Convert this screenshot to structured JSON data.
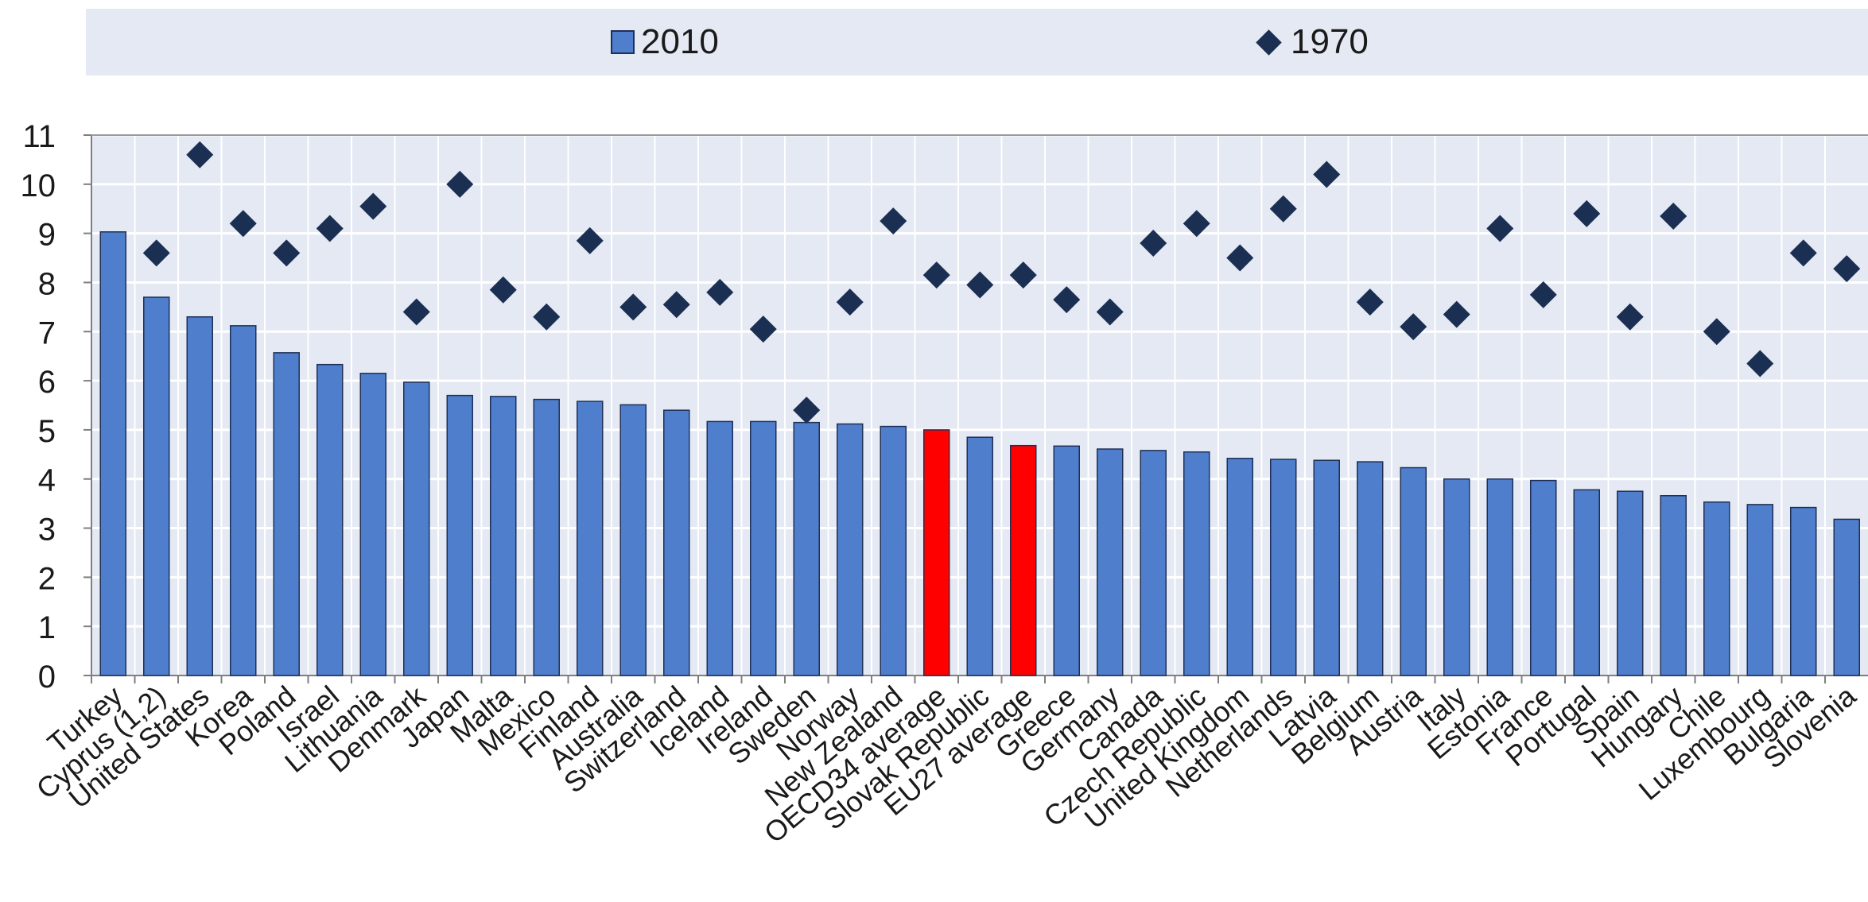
{
  "chart_data": {
    "type": "bar",
    "categories": [
      "Turkey",
      "Cyprus (1,2)",
      "United States",
      "Korea",
      "Poland",
      "Israel",
      "Lithuania",
      "Denmark",
      "Japan",
      "Malta",
      "Mexico",
      "Finland",
      "Australia",
      "Switzerland",
      "Iceland",
      "Ireland",
      "Sweden",
      "Norway",
      "New Zealand",
      "OECD34 average",
      "Slovak Republic",
      "EU27 average",
      "Greece",
      "Germany",
      "Canada",
      "Czech Republic",
      "United Kingdom",
      "Netherlands",
      "Latvia",
      "Belgium",
      "Austria",
      "Italy",
      "Estonia",
      "France",
      "Portugal",
      "Spain",
      "Hungary",
      "Chile",
      "Luxembourg",
      "Bulgaria",
      "Slovenia"
    ],
    "series": [
      {
        "name": "2010",
        "kind": "bar",
        "color": "#4f7fcc",
        "values": [
          9.03,
          7.7,
          7.3,
          7.12,
          6.57,
          6.33,
          6.15,
          5.97,
          5.7,
          5.68,
          5.62,
          5.58,
          5.51,
          5.4,
          5.17,
          5.17,
          5.15,
          5.12,
          5.07,
          5.0,
          4.85,
          4.68,
          4.67,
          4.61,
          4.58,
          4.55,
          4.42,
          4.4,
          4.38,
          4.35,
          4.23,
          4.0,
          4.0,
          3.97,
          3.78,
          3.75,
          3.66,
          3.53,
          3.48,
          3.42,
          3.18
        ]
      },
      {
        "name": "1970",
        "kind": "diamond",
        "color": "#1a2f52",
        "values": [
          null,
          8.6,
          10.6,
          9.2,
          8.6,
          9.1,
          9.55,
          7.4,
          10.0,
          7.85,
          7.3,
          8.85,
          7.5,
          7.55,
          7.8,
          7.05,
          5.4,
          7.6,
          9.25,
          8.15,
          7.95,
          8.15,
          7.65,
          7.4,
          8.8,
          9.2,
          8.5,
          9.5,
          10.2,
          7.6,
          7.1,
          7.35,
          9.1,
          7.75,
          9.4,
          7.3,
          9.35,
          7.0,
          6.35,
          8.6,
          8.28
        ]
      }
    ],
    "highlight_categories": [
      "OECD34 average",
      "EU27 average"
    ],
    "highlight_color": "#ff0000",
    "yticks": [
      "0",
      "1",
      "2",
      "3",
      "4",
      "5",
      "6",
      "7",
      "8",
      "9",
      "10",
      "11"
    ],
    "ylim": [
      0,
      11
    ],
    "grid": true,
    "legend_position": "top",
    "title": "",
    "xlabel": "",
    "ylabel": ""
  }
}
